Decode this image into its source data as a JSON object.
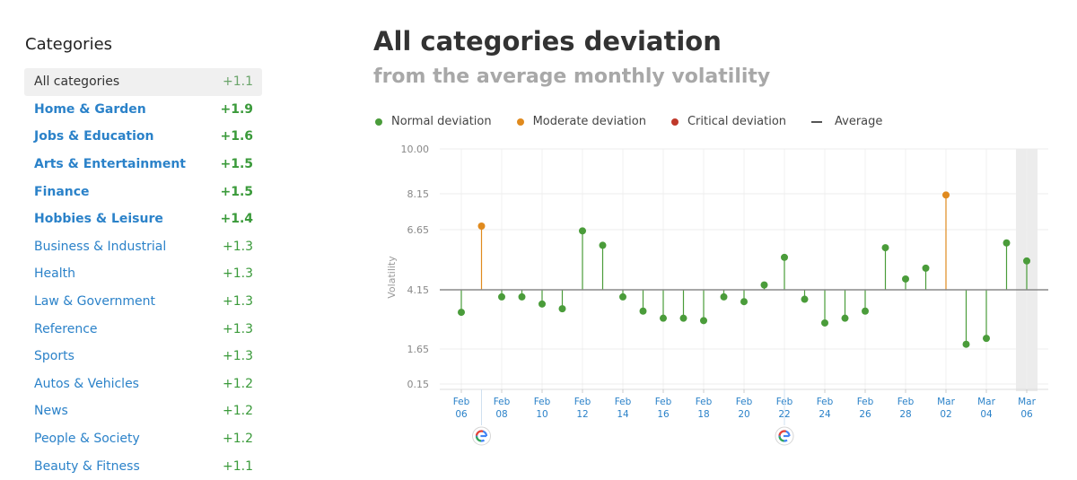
{
  "sidebar": {
    "title": "Categories",
    "items": [
      {
        "name": "All categories",
        "value": "+1.1"
      },
      {
        "name": "Home & Garden",
        "value": "+1.9"
      },
      {
        "name": "Jobs & Education",
        "value": "+1.6"
      },
      {
        "name": "Arts & Entertainment",
        "value": "+1.5"
      },
      {
        "name": "Finance",
        "value": "+1.5"
      },
      {
        "name": "Hobbies & Leisure",
        "value": "+1.4"
      },
      {
        "name": "Business & Industrial",
        "value": "+1.3"
      },
      {
        "name": "Health",
        "value": "+1.3"
      },
      {
        "name": "Law & Government",
        "value": "+1.3"
      },
      {
        "name": "Reference",
        "value": "+1.3"
      },
      {
        "name": "Sports",
        "value": "+1.3"
      },
      {
        "name": "Autos & Vehicles",
        "value": "+1.2"
      },
      {
        "name": "News",
        "value": "+1.2"
      },
      {
        "name": "People & Society",
        "value": "+1.2"
      },
      {
        "name": "Beauty & Fitness",
        "value": "+1.1"
      }
    ]
  },
  "header": {
    "title": "All categories deviation",
    "subtitle": "from the average monthly volatility"
  },
  "legend": {
    "normal": "Normal deviation",
    "moderate": "Moderate deviation",
    "critical": "Critical deviation",
    "average": "Average"
  },
  "colors": {
    "normal": "#4a9c3a",
    "moderate": "#e08a1e",
    "critical": "#c0392b",
    "average": "#888888",
    "tick_label": "#2b82c9"
  },
  "chart_data": {
    "type": "scatter",
    "ylabel": "Volatility",
    "yticks": [
      "10.00",
      "8.15",
      "6.65",
      "4.15",
      "1.65",
      "0.15"
    ],
    "ylim": [
      0.15,
      10.0
    ],
    "average": 4.15,
    "xtick_labels": [
      [
        "Feb",
        "06"
      ],
      [
        "Feb",
        "08"
      ],
      [
        "Feb",
        "10"
      ],
      [
        "Feb",
        "12"
      ],
      [
        "Feb",
        "14"
      ],
      [
        "Feb",
        "16"
      ],
      [
        "Feb",
        "18"
      ],
      [
        "Feb",
        "20"
      ],
      [
        "Feb",
        "22"
      ],
      [
        "Feb",
        "24"
      ],
      [
        "Feb",
        "26"
      ],
      [
        "Feb",
        "28"
      ],
      [
        "Mar",
        "02"
      ],
      [
        "Mar",
        "04"
      ],
      [
        "Mar",
        "06"
      ]
    ],
    "points": [
      {
        "date": "Feb 06",
        "value": 3.2,
        "status": "normal"
      },
      {
        "date": "Feb 07",
        "value": 6.8,
        "status": "moderate"
      },
      {
        "date": "Feb 08",
        "value": 3.85,
        "status": "normal"
      },
      {
        "date": "Feb 09",
        "value": 3.85,
        "status": "normal"
      },
      {
        "date": "Feb 10",
        "value": 3.55,
        "status": "normal"
      },
      {
        "date": "Feb 11",
        "value": 3.35,
        "status": "normal"
      },
      {
        "date": "Feb 12",
        "value": 6.6,
        "status": "normal"
      },
      {
        "date": "Feb 13",
        "value": 6.0,
        "status": "normal"
      },
      {
        "date": "Feb 14",
        "value": 3.85,
        "status": "normal"
      },
      {
        "date": "Feb 15",
        "value": 3.25,
        "status": "normal"
      },
      {
        "date": "Feb 16",
        "value": 2.95,
        "status": "normal"
      },
      {
        "date": "Feb 17",
        "value": 2.95,
        "status": "normal"
      },
      {
        "date": "Feb 18",
        "value": 2.85,
        "status": "normal"
      },
      {
        "date": "Feb 19",
        "value": 3.85,
        "status": "normal"
      },
      {
        "date": "Feb 20",
        "value": 3.65,
        "status": "normal"
      },
      {
        "date": "Feb 21",
        "value": 4.35,
        "status": "normal"
      },
      {
        "date": "Feb 22",
        "value": 5.5,
        "status": "normal"
      },
      {
        "date": "Feb 23",
        "value": 3.75,
        "status": "normal"
      },
      {
        "date": "Feb 24",
        "value": 2.75,
        "status": "normal"
      },
      {
        "date": "Feb 25",
        "value": 2.95,
        "status": "normal"
      },
      {
        "date": "Feb 26",
        "value": 3.25,
        "status": "normal"
      },
      {
        "date": "Feb 27",
        "value": 5.9,
        "status": "normal"
      },
      {
        "date": "Feb 28",
        "value": 4.6,
        "status": "normal"
      },
      {
        "date": "Mar 01",
        "value": 5.05,
        "status": "normal"
      },
      {
        "date": "Mar 02",
        "value": 8.1,
        "status": "moderate"
      },
      {
        "date": "Mar 03",
        "value": 1.85,
        "status": "normal"
      },
      {
        "date": "Mar 04",
        "value": 2.1,
        "status": "normal"
      },
      {
        "date": "Mar 05",
        "value": 6.1,
        "status": "normal"
      },
      {
        "date": "Mar 06",
        "value": 5.35,
        "status": "normal"
      }
    ],
    "google_update_dates": [
      "Feb 07",
      "Feb 22"
    ]
  }
}
